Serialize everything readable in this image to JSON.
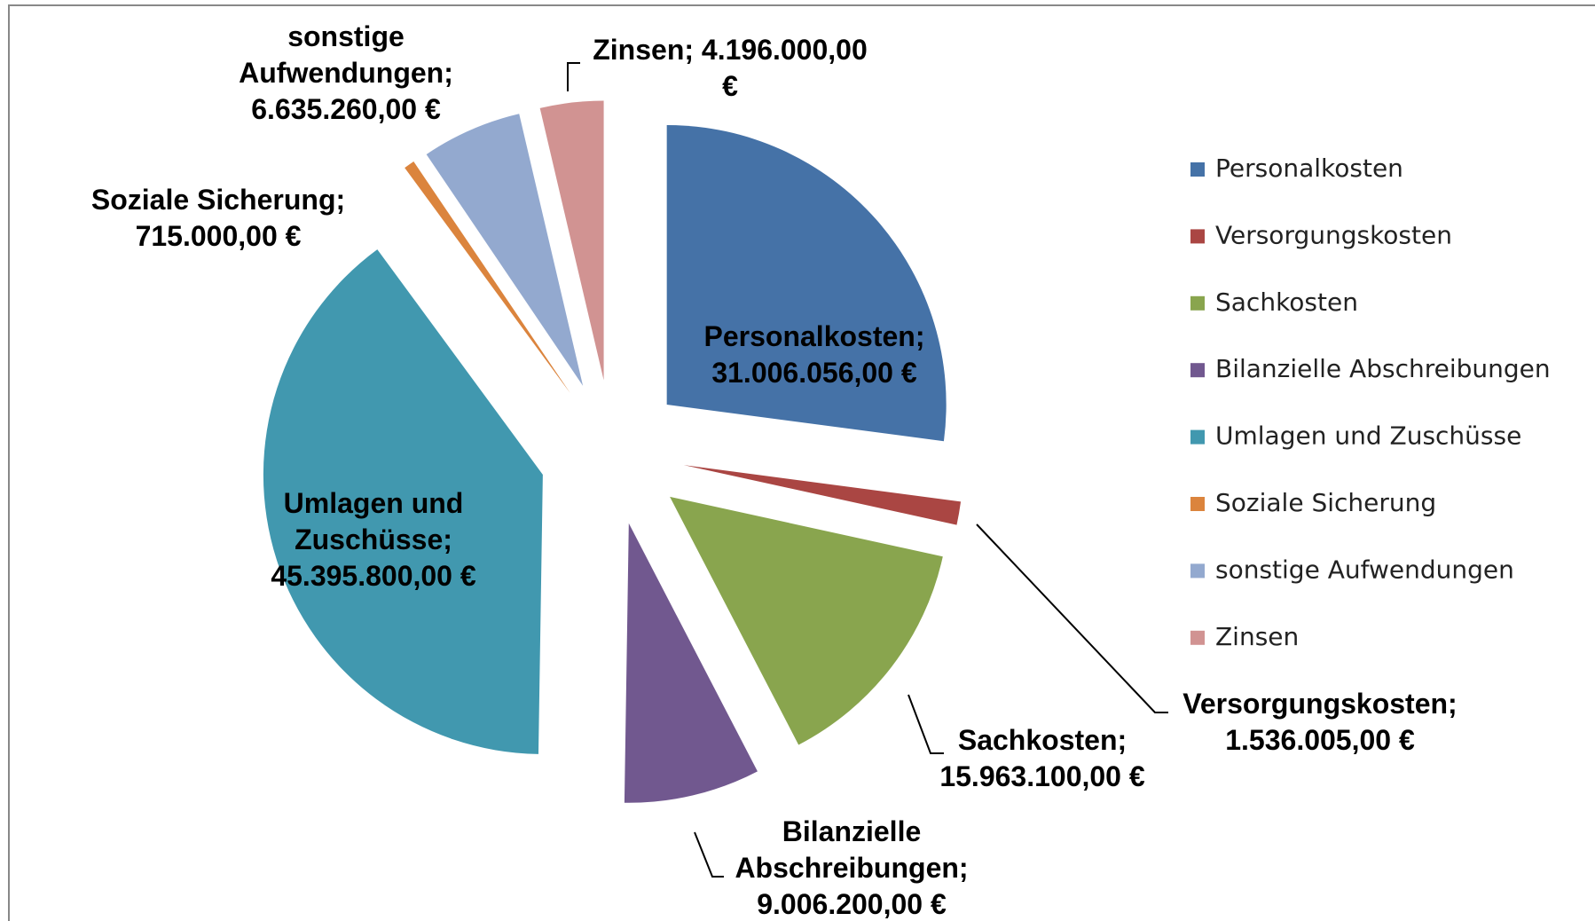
{
  "chart_data": {
    "type": "pie",
    "categories": [
      "Personalkosten",
      "Versorgungskosten",
      "Sachkosten",
      "Bilanzielle Abschreibungen",
      "Umlagen und Zuschüsse",
      "Soziale Sicherung",
      "sonstige Aufwendungen",
      "Zinsen"
    ],
    "values": [
      31006056,
      1536005,
      15963100,
      9006200,
      45395800,
      715000,
      6635260,
      4196000
    ],
    "value_labels": [
      "Personalkosten; 31.006.056,00 €",
      "Versorgungskosten; 1.536.005,00 €",
      "Sachkosten; 15.963.100,00 €",
      "Bilanzielle Abschreibungen; 9.006.200,00 €",
      "Umlagen und Zuschüsse; 45.395.800,00 €",
      "Soziale Sicherung; 715.000,00 €",
      "sonstige Aufwendungen; 6.635.260,00 €",
      "Zinsen; 4.196.000,00 €"
    ],
    "colors": [
      "#4572a7",
      "#aa4643",
      "#89a54e",
      "#71588f",
      "#4198af",
      "#db843d",
      "#93a9cf",
      "#d19392"
    ],
    "legend": "right"
  }
}
